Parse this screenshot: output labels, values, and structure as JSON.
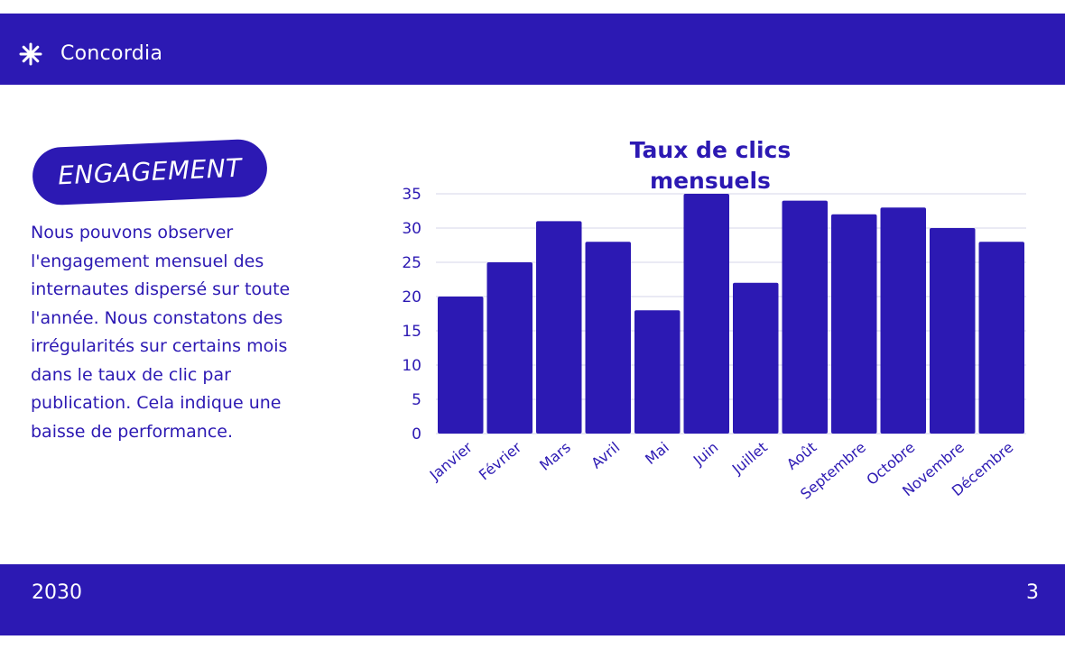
{
  "header": {
    "brand": "Concordia",
    "brand_icon": "asterisk-icon"
  },
  "section": {
    "badge": "ENGAGEMENT",
    "description": "Nous pouvons observer l'engagement mensuel des internautes dispersé sur toute l'année. Nous constatons des irrégularités sur certains mois dans le taux de clic par publication. Cela indique une baisse de performance."
  },
  "footer": {
    "year": "2030",
    "page": "3"
  },
  "colors": {
    "primary": "#2c19b3",
    "grid": "#d4d4ea"
  },
  "chart_data": {
    "type": "bar",
    "title": "Taux de clics mensuels",
    "xlabel": "",
    "ylabel": "",
    "categories": [
      "Janvier",
      "Février",
      "Mars",
      "Avril",
      "Mai",
      "Juin",
      "Juillet",
      "Août",
      "Septembre",
      "Octobre",
      "Novembre",
      "Décembre"
    ],
    "values": [
      20,
      25,
      31,
      28,
      18,
      35,
      22,
      34,
      32,
      33,
      30,
      28
    ],
    "ylim": [
      0,
      35
    ],
    "yticks": [
      0,
      5,
      10,
      15,
      20,
      25,
      30,
      35
    ],
    "grid": true,
    "legend": "none"
  }
}
